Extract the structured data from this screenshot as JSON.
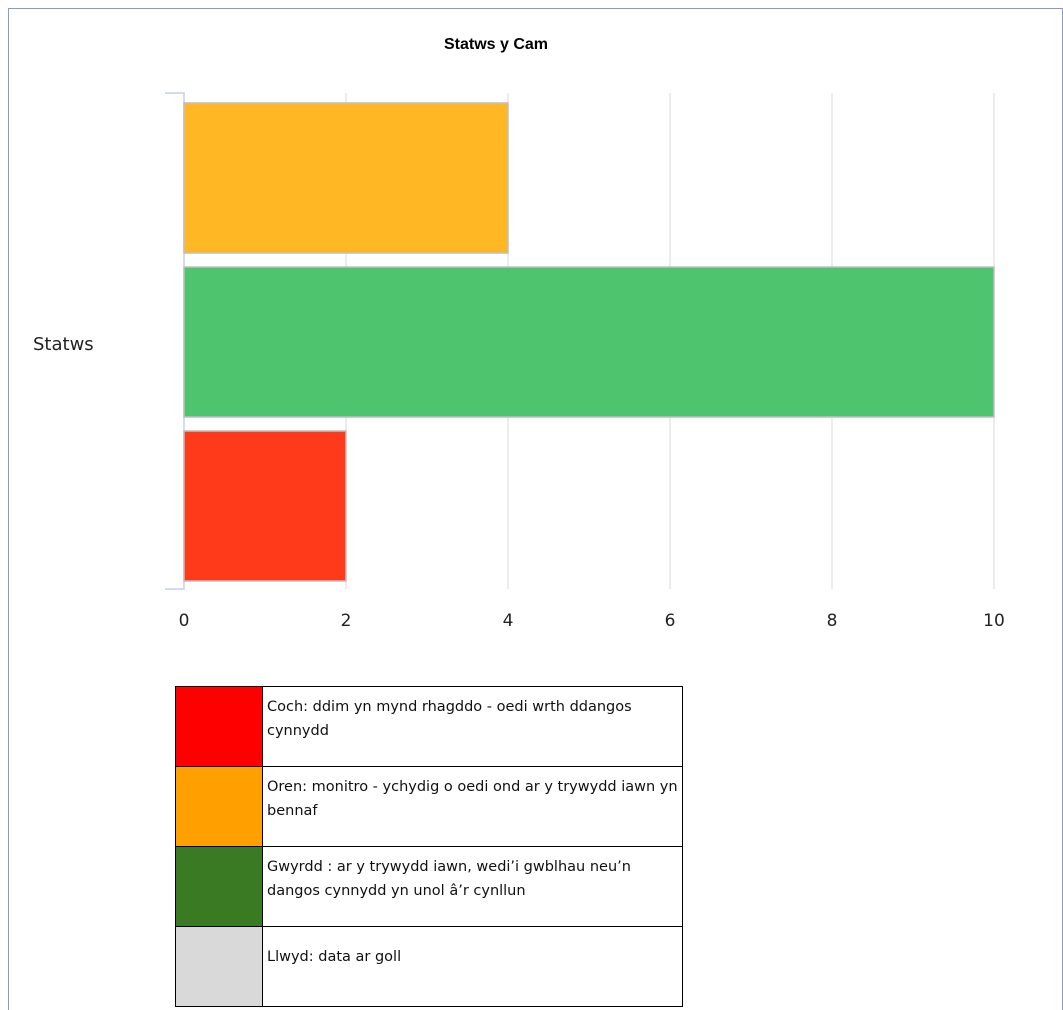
{
  "chart_data": {
    "type": "bar",
    "orientation": "horizontal",
    "title": "Statws y Cam",
    "category_label": "Statws",
    "series": [
      {
        "value": 4,
        "color": "#FFB823"
      },
      {
        "value": 10,
        "color": "#4FC46E"
      },
      {
        "value": 2,
        "color": "#FF3A1A"
      }
    ],
    "xticks": [
      0,
      2,
      4,
      6,
      8,
      10
    ],
    "xlim": [
      0,
      10
    ],
    "grid": true
  },
  "legend": [
    {
      "color": "#FF0000",
      "text": "Coch: ddim yn mynd rhagddo - oedi wrth ddangos cynnydd"
    },
    {
      "color": "#FFA000",
      "text": "Oren: monitro - ychydig o oedi ond ar y trywydd iawn yn bennaf"
    },
    {
      "color": "#3A7A23",
      "text": "Gwyrdd : ar y trywydd iawn, wedi’i gwblhau neu’n dangos cynnydd yn unol â’r cynllun"
    },
    {
      "color": "#D9D9D9",
      "text": "Llwyd: data ar goll"
    }
  ]
}
